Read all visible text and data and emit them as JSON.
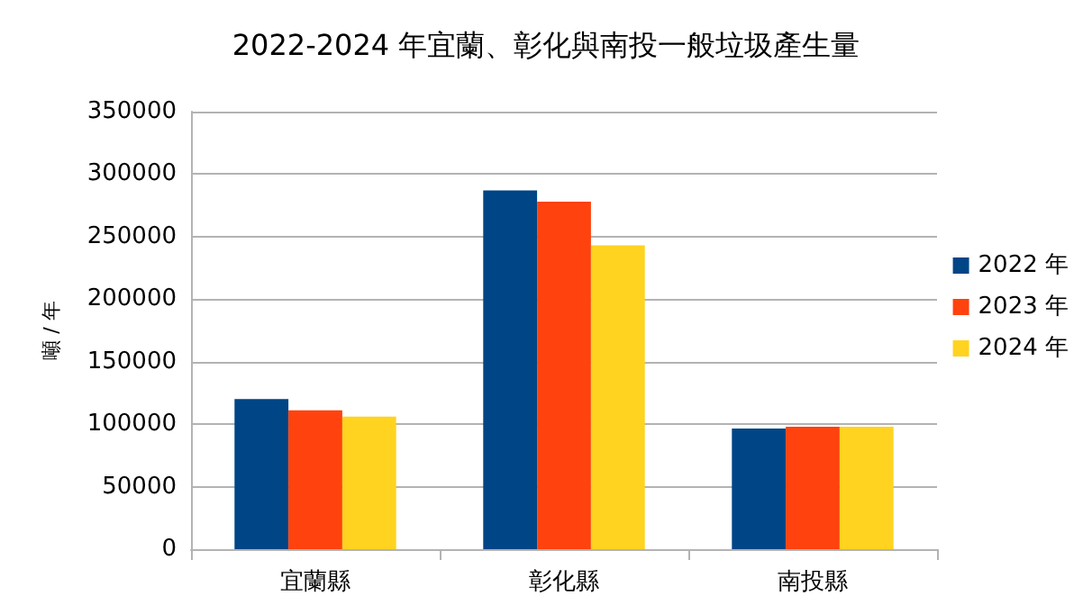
{
  "chart_data": {
    "type": "bar",
    "title": "2022-2024 年宜蘭、彰化與南投一般垃圾產生量",
    "ylabel": "噸 / 年",
    "categories": [
      "宜蘭縣",
      "彰化縣",
      "南投縣"
    ],
    "series": [
      {
        "name": "2022 年",
        "color": "#004586",
        "values": [
          120000,
          287000,
          96500
        ]
      },
      {
        "name": "2023 年",
        "color": "#ff420e",
        "values": [
          111000,
          278000,
          98000
        ]
      },
      {
        "name": "2024 年",
        "color": "#ffd320",
        "values": [
          106000,
          243000,
          98000
        ]
      }
    ],
    "ylim": [
      0,
      350000
    ],
    "yticks": [
      0,
      50000,
      100000,
      150000,
      200000,
      250000,
      300000,
      350000
    ],
    "grid": "y",
    "legend": "right"
  }
}
